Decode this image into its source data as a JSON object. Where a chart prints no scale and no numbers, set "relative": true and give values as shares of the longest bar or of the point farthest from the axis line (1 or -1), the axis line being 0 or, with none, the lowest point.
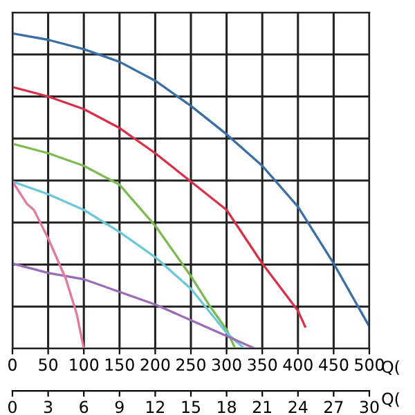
{
  "chart_data": {
    "type": "line",
    "relative": true,
    "xlabel": "Q(",
    "x2label": "Q(",
    "xlim": [
      0,
      500
    ],
    "xticks": [
      0,
      50,
      100,
      150,
      200,
      250,
      300,
      350,
      400,
      450,
      500
    ],
    "x2lim": [
      0,
      30
    ],
    "x2ticks": [
      0,
      3,
      6,
      9,
      12,
      15,
      18,
      21,
      24,
      27,
      30
    ],
    "grid": true,
    "marker": "none",
    "line_style": "solid",
    "series": [
      {
        "color": "#3a6ea5",
        "x": [
          0,
          50,
          100,
          150,
          200,
          250,
          300,
          350,
          400,
          450,
          500
        ],
        "values": [
          1,
          0.98,
          0.95,
          0.91,
          0.85,
          0.77,
          0.68,
          0.58,
          0.45,
          0.27,
          0.07
        ]
      },
      {
        "color": "#d9304a",
        "x": [
          0,
          50,
          100,
          150,
          200,
          250,
          300,
          350,
          400,
          410
        ],
        "values": [
          0.83,
          0.8,
          0.76,
          0.7,
          0.62,
          0.53,
          0.44,
          0.27,
          0.12,
          0.07
        ]
      },
      {
        "color": "#7dbb52",
        "x": [
          0,
          50,
          100,
          150,
          200,
          250,
          275,
          300,
          312
        ],
        "values": [
          0.65,
          0.62,
          0.58,
          0.52,
          0.39,
          0.23,
          0.14,
          0.06,
          0
        ]
      },
      {
        "color": "#6cc8d8",
        "x": [
          0,
          50,
          100,
          150,
          200,
          250,
          300,
          325
        ],
        "values": [
          0.53,
          0.49,
          0.44,
          0.37,
          0.29,
          0.19,
          0.05,
          0
        ]
      },
      {
        "color": "#9a6cb4",
        "x": [
          0,
          50,
          100,
          150,
          200,
          250,
          300,
          340
        ],
        "values": [
          0.27,
          0.24,
          0.22,
          0.18,
          0.14,
          0.09,
          0.04,
          0
        ]
      },
      {
        "color": "#e07aa0",
        "x": [
          0,
          20,
          30,
          50,
          75,
          90,
          100
        ],
        "values": [
          0.53,
          0.46,
          0.44,
          0.35,
          0.22,
          0.11,
          0
        ]
      }
    ]
  }
}
